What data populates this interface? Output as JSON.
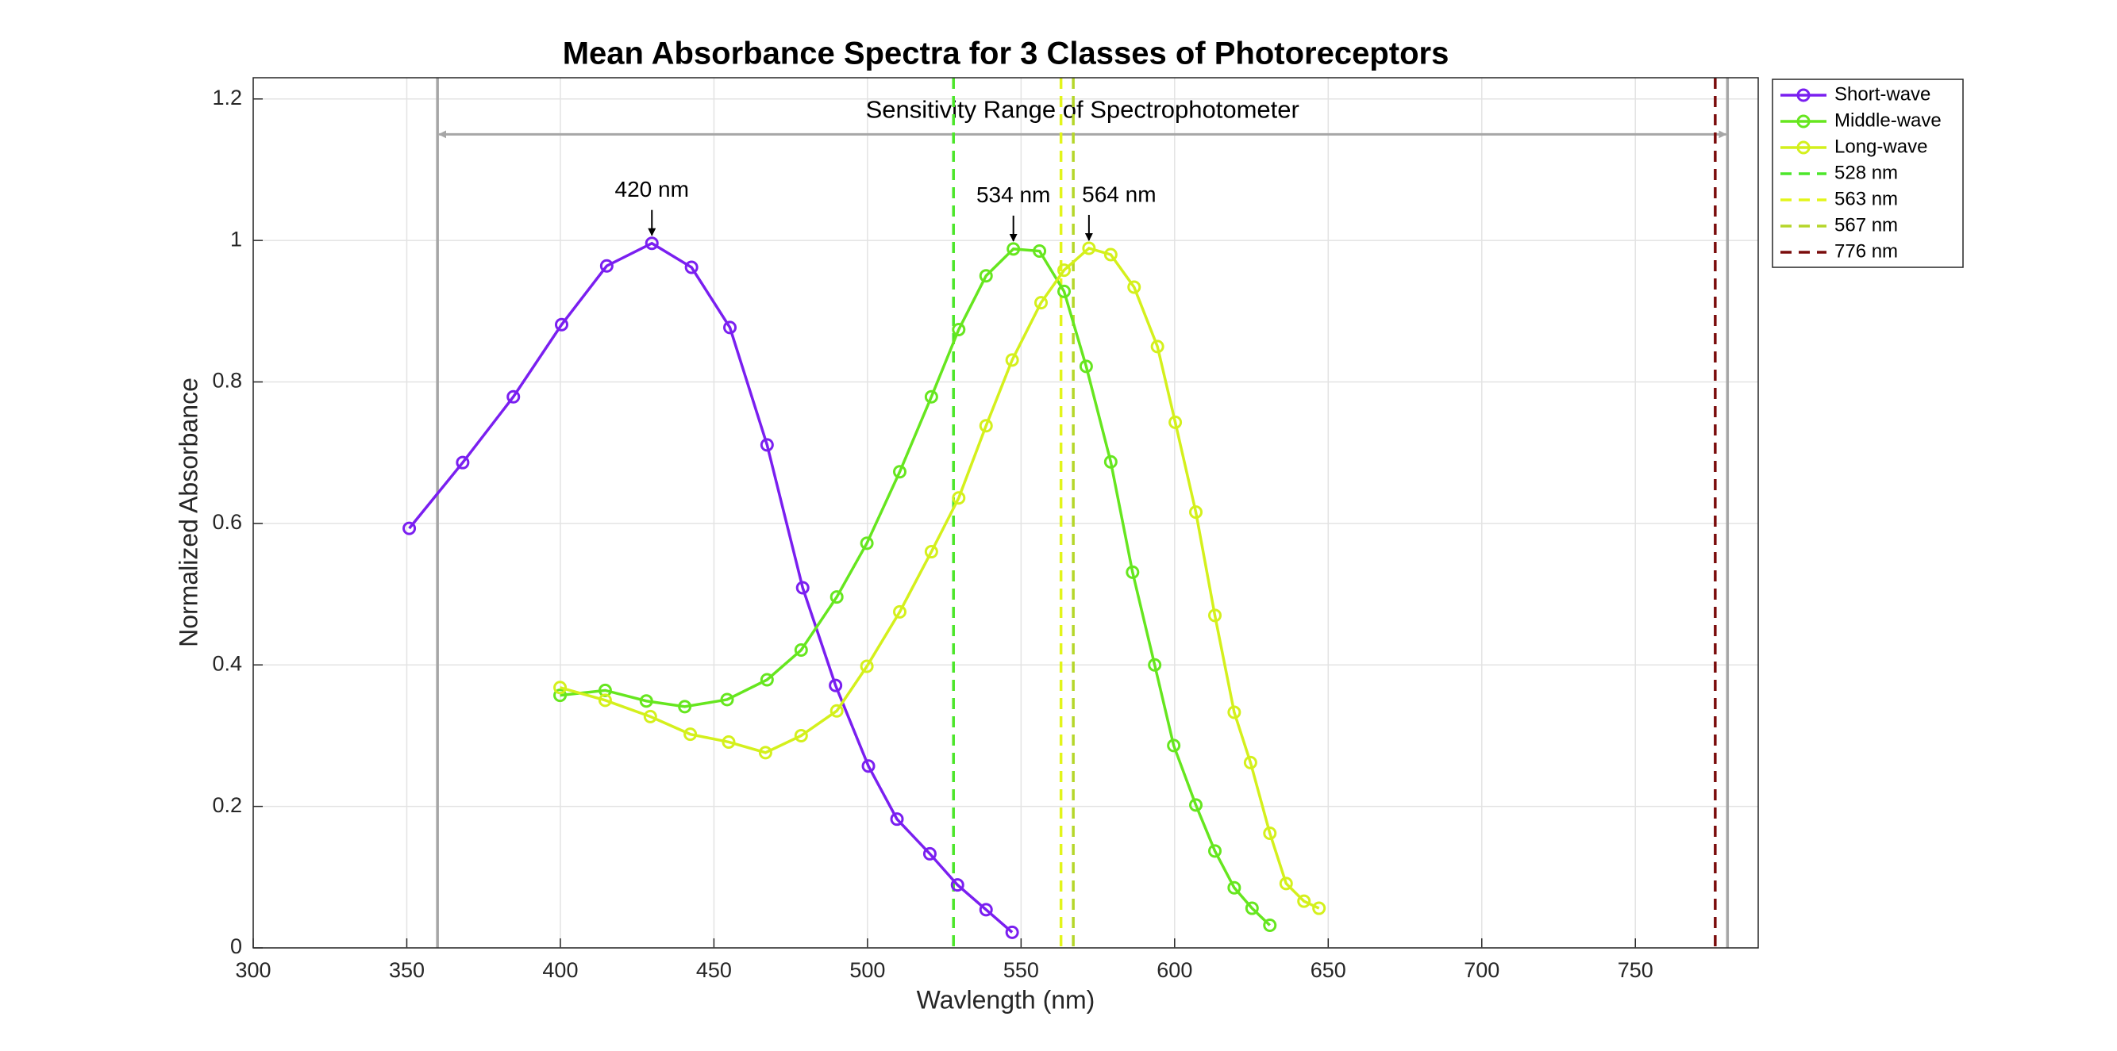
{
  "chart_data": {
    "type": "line",
    "title": "Mean Absorbance Spectra for 3 Classes of Photoreceptors",
    "x_label": "Wavlength (nm)",
    "y_label": "Normalized Absorbance",
    "xlim": [
      300,
      790
    ],
    "ylim": [
      0,
      1.23
    ],
    "xticks": [
      300,
      350,
      400,
      450,
      500,
      550,
      600,
      650,
      700,
      750
    ],
    "yticks": [
      0,
      0.2,
      0.4,
      0.6,
      0.8,
      1,
      1.2
    ],
    "grid": true,
    "legend": "outside-right",
    "series": [
      {
        "name": "Short-wave",
        "color": "#7a1ff0",
        "x": [
          350.8,
          368.2,
          384.7,
          400.4,
          415.1,
          429.8,
          442.7,
          455.2,
          467.3,
          478.9,
          489.6,
          500.3,
          509.6,
          520.3,
          529.3,
          538.6,
          547.1
        ],
        "values": [
          0.593,
          0.686,
          0.779,
          0.881,
          0.964,
          0.996,
          0.962,
          0.877,
          0.711,
          0.509,
          0.371,
          0.257,
          0.182,
          0.133,
          0.089,
          0.054,
          0.022
        ]
      },
      {
        "name": "Middle-wave",
        "color": "#66e61f",
        "x": [
          399.9,
          414.6,
          428,
          440.5,
          454.3,
          467.3,
          478.4,
          490,
          499.8,
          510.5,
          520.8,
          529.7,
          538.6,
          547.5,
          556,
          564,
          571.2,
          579.2,
          586.3,
          593.5,
          599.7,
          606.9,
          613.1,
          619.4,
          625.2,
          631
        ],
        "values": [
          0.357,
          0.364,
          0.349,
          0.341,
          0.351,
          0.379,
          0.421,
          0.496,
          0.572,
          0.673,
          0.779,
          0.874,
          0.95,
          0.988,
          0.985,
          0.928,
          0.822,
          0.687,
          0.531,
          0.4,
          0.286,
          0.202,
          0.137,
          0.085,
          0.056,
          0.032
        ]
      },
      {
        "name": "Long-wave",
        "color": "#d4f01c",
        "x": [
          399.9,
          414.6,
          429.3,
          442.3,
          454.8,
          466.8,
          478.4,
          490,
          499.8,
          510.5,
          520.8,
          529.7,
          538.6,
          547.1,
          556.5,
          564,
          572.1,
          579.2,
          586.8,
          594.4,
          600.2,
          606.9,
          613.1,
          619.4,
          624.7,
          631,
          636.3,
          642.1,
          647
        ],
        "values": [
          0.368,
          0.35,
          0.327,
          0.302,
          0.291,
          0.276,
          0.3,
          0.335,
          0.398,
          0.475,
          0.56,
          0.636,
          0.738,
          0.831,
          0.912,
          0.958,
          0.989,
          0.98,
          0.934,
          0.85,
          0.743,
          0.616,
          0.47,
          0.333,
          0.262,
          0.162,
          0.091,
          0.066,
          0.056
        ]
      }
    ],
    "vlines": [
      {
        "name": "528 nm",
        "color": "#4ce62a",
        "x": 528
      },
      {
        "name": "563 nm",
        "color": "#e3f51a",
        "x": 563
      },
      {
        "name": "567 nm",
        "color": "#b5d62a",
        "x": 567
      },
      {
        "name": "776 nm",
        "color": "#7a0c0c",
        "x": 776
      }
    ],
    "range": {
      "label": "Sensitivity Range of Spectrophotometer",
      "color": "#a6a6a6",
      "x": [
        360,
        780
      ]
    },
    "annotations": [
      "420 nm",
      "534 nm",
      "564 nm"
    ]
  }
}
